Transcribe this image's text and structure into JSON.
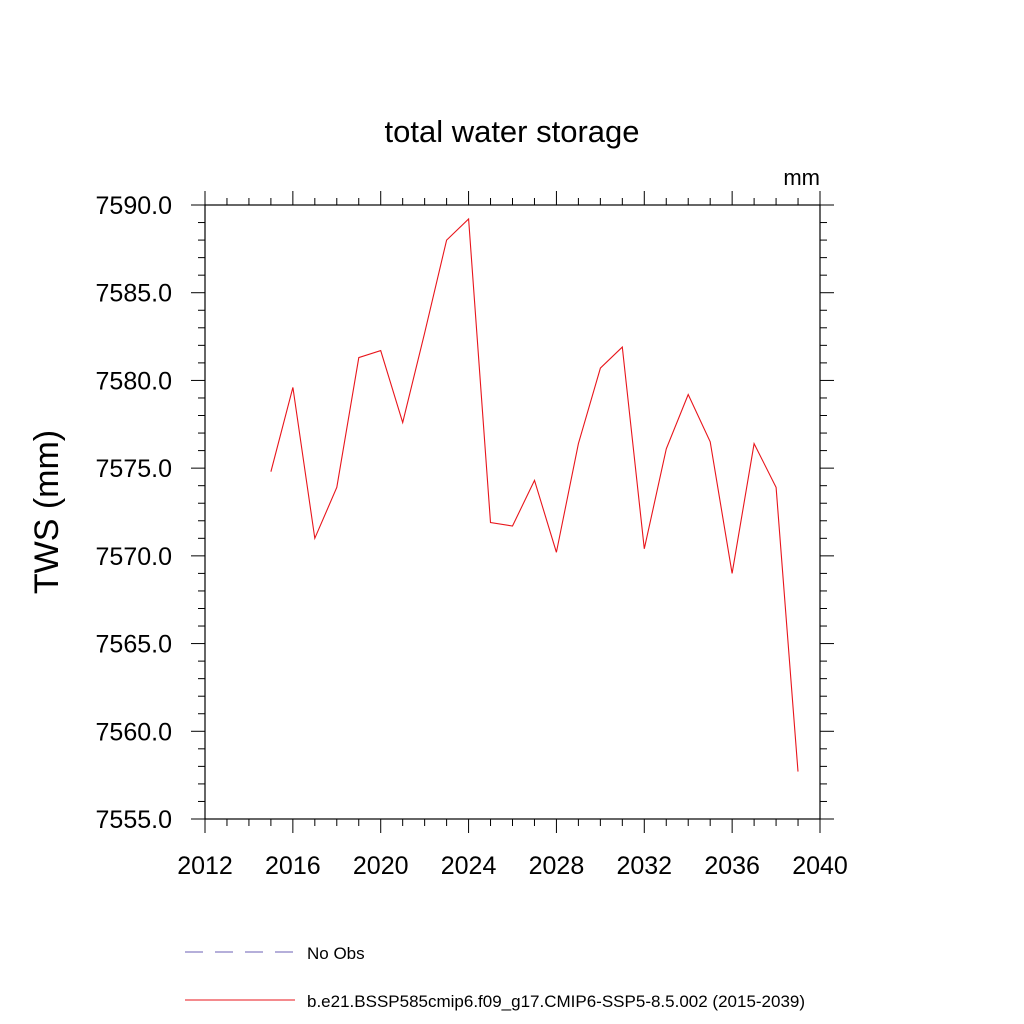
{
  "chart_data": {
    "type": "line",
    "title": "total water storage",
    "units_label": "mm",
    "ylabel": "TWS  (mm)",
    "xlabel": "",
    "xlim": [
      2012,
      2040
    ],
    "ylim": [
      7555.0,
      7590.0
    ],
    "x_ticks": [
      2012,
      2016,
      2020,
      2024,
      2028,
      2032,
      2036,
      2040
    ],
    "y_ticks": [
      "7555.0",
      "7560.0",
      "7565.0",
      "7570.0",
      "7575.0",
      "7580.0",
      "7585.0",
      "7590.0"
    ],
    "grid": false,
    "legend_position": "bottom",
    "series": [
      {
        "name": "No Obs",
        "style": "dashed",
        "color": "#6b5fb5",
        "x": [],
        "y": []
      },
      {
        "name": "b.e21.BSSP585cmip6.f09_g17.CMIP6-SSP5-8.5.002 (2015-2039)",
        "style": "solid",
        "color": "#e8151b",
        "x": [
          2015,
          2016,
          2017,
          2018,
          2019,
          2020,
          2021,
          2022,
          2023,
          2024,
          2025,
          2026,
          2027,
          2028,
          2029,
          2030,
          2031,
          2032,
          2033,
          2034,
          2035,
          2036,
          2037,
          2038,
          2039
        ],
        "y": [
          7574.8,
          7579.6,
          7571.0,
          7573.9,
          7581.3,
          7581.7,
          7577.6,
          7582.7,
          7588.0,
          7589.2,
          7571.9,
          7571.7,
          7574.3,
          7570.2,
          7576.4,
          7580.7,
          7581.9,
          7570.4,
          7576.1,
          7579.2,
          7576.5,
          7569.0,
          7576.4,
          7573.9,
          7557.7
        ]
      }
    ]
  }
}
